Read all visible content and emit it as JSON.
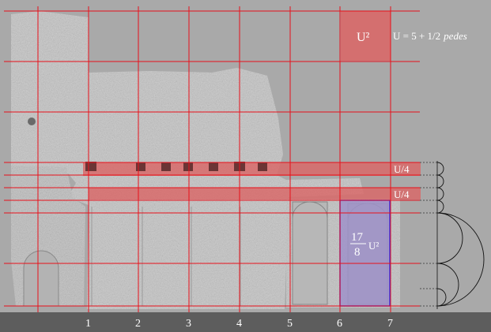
{
  "formula": {
    "unit_square": "U²",
    "unit_definition": "U = 5 + 1/2",
    "unit_definition_italic": "pedes"
  },
  "band_labels": [
    "U/4",
    "U/4"
  ],
  "area_label": {
    "numerator": "17",
    "denominator": "8",
    "suffix": "U²"
  },
  "column_labels": [
    "1",
    "2",
    "3",
    "4",
    "5",
    "6",
    "7"
  ],
  "colors": {
    "background": "#a9a9a9",
    "grid_line": "#e8101a",
    "band_fill": "#d86a6a",
    "area_fill": "#9f92c9",
    "area_stroke": "#3a30e0",
    "ground": "#5d5d5d",
    "arc": "#111111"
  }
}
